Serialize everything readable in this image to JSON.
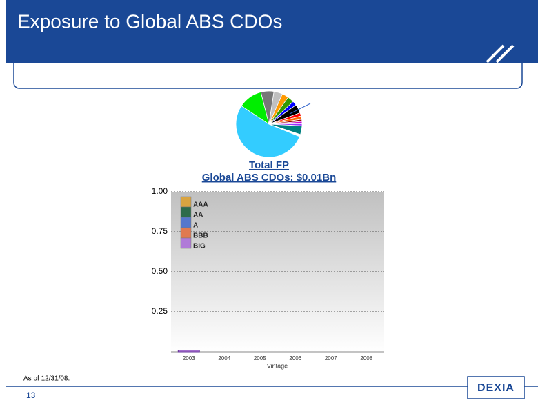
{
  "header": {
    "title": "Exposure to Global ABS CDOs"
  },
  "chart_data": [
    {
      "type": "pie",
      "values": [
        6,
        4,
        3,
        3,
        2,
        4,
        1.5,
        1.5,
        1,
        1,
        1,
        4,
        1,
        50,
        11
      ],
      "colors": [
        "#777777",
        "#c0c0c0",
        "#ff9900",
        "#339900",
        "#0000ff",
        "#000000",
        "#ff0000",
        "#ff6600",
        "#990000",
        "#cc00cc",
        "#9933ff",
        "#008080",
        "#ffffff",
        "#33ccff",
        "#00ee00"
      ]
    },
    {
      "type": "bar",
      "stacked": true,
      "title": "Total FP",
      "subtitle": "Global ABS CDOs: $0.01Bn",
      "x_label": "Vintage",
      "categories": [
        "2003",
        "2004",
        "2005",
        "2006",
        "2007",
        "2008"
      ],
      "series": [
        {
          "name": "AAA",
          "color": "#d9a440",
          "values": [
            0,
            0,
            0,
            0,
            0,
            0
          ]
        },
        {
          "name": "AA",
          "color": "#2e6b4a",
          "values": [
            0,
            0,
            0,
            0,
            0,
            0
          ]
        },
        {
          "name": "A",
          "color": "#5577cc",
          "values": [
            0,
            0,
            0,
            0,
            0,
            0
          ]
        },
        {
          "name": "BBB",
          "color": "#e07a50",
          "values": [
            0,
            0,
            0,
            0,
            0,
            0
          ]
        },
        {
          "name": "BIG",
          "color": "#b07ad8",
          "values": [
            0.01,
            0,
            0,
            0,
            0,
            0
          ]
        }
      ],
      "ylim": [
        0,
        1
      ],
      "yticks": [
        {
          "value": 0.25,
          "label": "0.25"
        },
        {
          "value": 0.5,
          "label": "0.50"
        },
        {
          "value": 0.75,
          "label": "0.75"
        },
        {
          "value": 1,
          "label": "1.00"
        }
      ],
      "grid": true,
      "legend": "top-left"
    }
  ],
  "footnote": "As of 12/31/08.",
  "page_number": "13",
  "logo": "DEXIA"
}
